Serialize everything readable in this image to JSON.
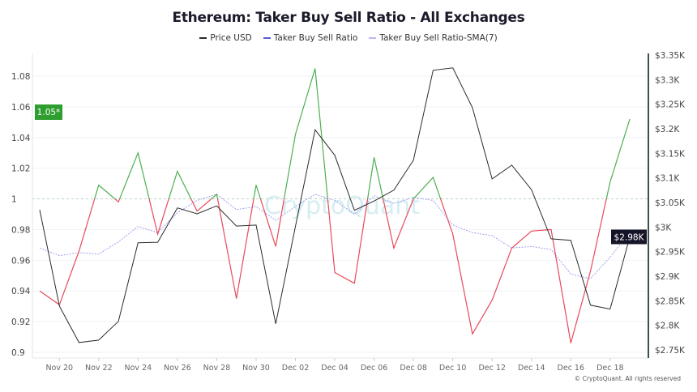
{
  "chart_data": {
    "type": "line",
    "title": "Ethereum: Taker Buy Sell Ratio - All Exchanges",
    "x": [
      "Nov 19",
      "Nov 20",
      "Nov 21",
      "Nov 22",
      "Nov 23",
      "Nov 24",
      "Nov 25",
      "Nov 26",
      "Nov 27",
      "Nov 28",
      "Nov 29",
      "Nov 30",
      "Dec 01",
      "Dec 02",
      "Dec 03",
      "Dec 04",
      "Dec 05",
      "Dec 06",
      "Dec 07",
      "Dec 08",
      "Dec 09",
      "Dec 10",
      "Dec 11",
      "Dec 12",
      "Dec 13",
      "Dec 14",
      "Dec 15",
      "Dec 16",
      "Dec 17",
      "Dec 18",
      "Dec 19"
    ],
    "x_tick_labels": [
      "Nov 20",
      "Nov 22",
      "Nov 24",
      "Nov 26",
      "Nov 28",
      "Nov 30",
      "Dec 02",
      "Dec 04",
      "Dec 06",
      "Dec 08",
      "Dec 10",
      "Dec 12",
      "Dec 14",
      "Dec 16",
      "Dec 18"
    ],
    "series": [
      {
        "name": "Price USD",
        "axis": "right",
        "color": "#2b2b2b",
        "values": [
          3035,
          2839,
          2765,
          2770,
          2808,
          2968,
          2969,
          3039,
          3027,
          3043,
          3002,
          3004,
          2803,
          3001,
          3198,
          3146,
          3034,
          3053,
          3075,
          3136,
          3319,
          3324,
          3243,
          3098,
          3126,
          3076,
          2976,
          2973,
          2841,
          2833,
          2980
        ]
      },
      {
        "name": "Taker Buy Sell Ratio",
        "axis": "left",
        "color": "#5b5bd6",
        "color_above": "#4caf50",
        "color_below": "#e8495a",
        "values": [
          0.94,
          0.931,
          0.966,
          1.009,
          0.998,
          1.03,
          0.977,
          1.018,
          0.992,
          1.003,
          0.935,
          1.009,
          0.969,
          1.042,
          1.085,
          0.952,
          0.945,
          1.027,
          0.968,
          1.0,
          1.014,
          0.977,
          0.912,
          0.934,
          0.968,
          0.979,
          0.98,
          0.906,
          0.953,
          1.011,
          1.052
        ]
      },
      {
        "name": "Taker Buy Sell Ratio-SMA(7)",
        "axis": "left",
        "color": "#a0a0f0",
        "values": [
          0.968,
          0.963,
          0.965,
          0.964,
          0.972,
          0.982,
          0.978,
          0.991,
          0.999,
          1.003,
          0.993,
          0.995,
          0.986,
          0.995,
          1.003,
          0.999,
          0.99,
          1.002,
          0.997,
          1.001,
          0.999,
          0.983,
          0.978,
          0.976,
          0.968,
          0.969,
          0.967,
          0.951,
          0.948,
          0.962,
          0.978
        ]
      }
    ],
    "y_left": {
      "range": [
        0.9,
        1.08
      ],
      "tick_labels": [
        "0.9",
        "0.92",
        "0.94",
        "0.96",
        "0.98",
        "1",
        "1.02",
        "1.04",
        "1.06",
        "1.08"
      ],
      "reference_line": 1
    },
    "y_right": {
      "range": [
        2750,
        3350
      ],
      "tick_labels": [
        "$2.75K",
        "$2.8K",
        "$2.85K",
        "$2.9K",
        "$2.95K",
        "$3K",
        "$3.05K",
        "$3.1K",
        "$3.15K",
        "$3.2K",
        "$3.25K",
        "$3.3K",
        "$3.35K"
      ]
    },
    "last_value_badges": {
      "left": "1.05*",
      "left_color": "#2e9e2e",
      "right": "$2.98K",
      "right_color": "#15152a"
    },
    "grid": true,
    "legend": "top-center"
  },
  "watermark": "CryptoQuant",
  "footer": "© CryptoQuant. All rights reserved"
}
